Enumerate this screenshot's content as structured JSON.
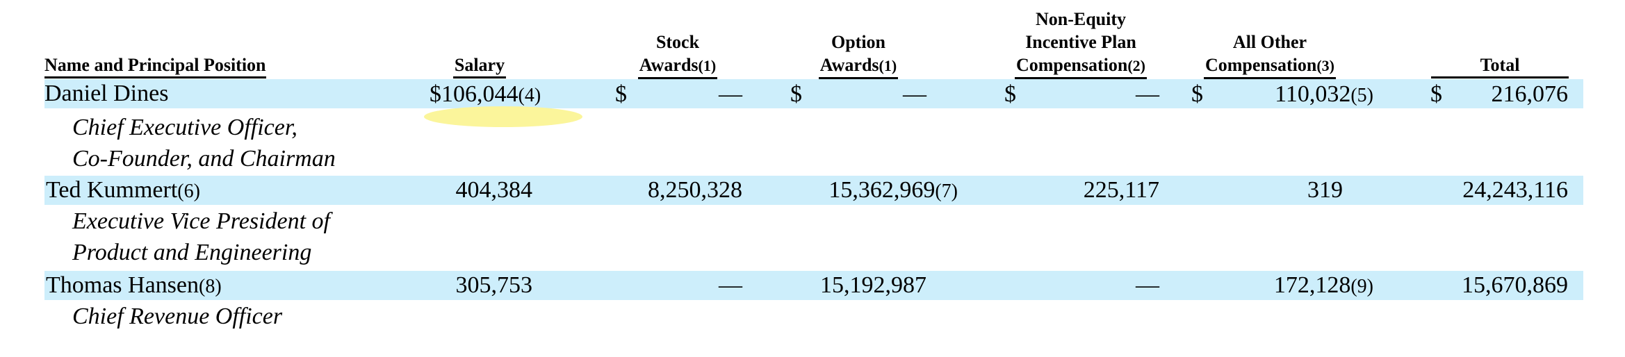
{
  "headers": {
    "name": [
      "Name and Principal Position"
    ],
    "salary": [
      "Salary"
    ],
    "stock": [
      "Stock",
      "Awards"
    ],
    "stock_fn": "(1)",
    "option": [
      "Option",
      "Awards"
    ],
    "option_fn": "(1)",
    "nonequity": [
      "Non-Equity",
      "Incentive Plan",
      "Compensation"
    ],
    "nonequity_fn": "(2)",
    "other": [
      "All Other",
      "Compensation"
    ],
    "other_fn": "(3)",
    "total": [
      "Total"
    ]
  },
  "currency_symbol": "$",
  "rows": [
    {
      "name": "Daniel Dines",
      "name_fn": "",
      "title_lines": [
        "Chief Executive Officer,",
        "Co-Founder, and Chairman"
      ],
      "salary": "$106,044",
      "salary_fn": "(4)",
      "stock": "—",
      "option": "—",
      "option_fn": "",
      "nonequity": "—",
      "other": "110,032",
      "other_fn": "(5)",
      "total": "216,076"
    },
    {
      "name": "Ted Kummert",
      "name_fn": "(6)",
      "title_lines": [
        "Executive Vice President of",
        "Product and Engineering"
      ],
      "salary": "404,384",
      "salary_fn": "",
      "stock": "8,250,328",
      "option": "15,362,969",
      "option_fn": "(7)",
      "nonequity": "225,117",
      "other": "319",
      "other_fn": "",
      "total": "24,243,116"
    },
    {
      "name": "Thomas Hansen",
      "name_fn": "(8)",
      "title_lines": [
        "Chief Revenue Officer"
      ],
      "salary": "305,753",
      "salary_fn": "",
      "stock": "—",
      "option": "15,192,987",
      "option_fn": "",
      "nonequity": "—",
      "other": "172,128",
      "other_fn": "(9)",
      "total": "15,670,869"
    }
  ],
  "colors": {
    "row_band": "#cdeefb",
    "highlight": "#fbf59b"
  }
}
